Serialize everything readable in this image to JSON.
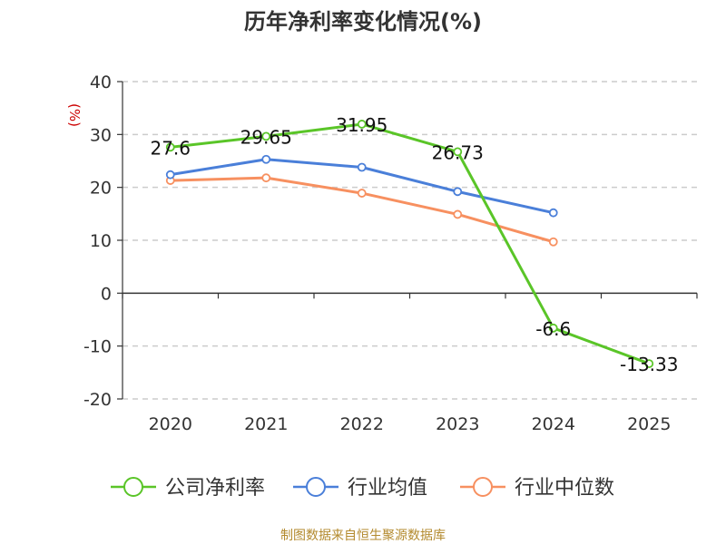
{
  "chart_data": {
    "type": "line",
    "title": "历年净利率变化情况(%)",
    "ylabel": "(%)",
    "categories": [
      "2020",
      "2021",
      "2022",
      "2023",
      "2024",
      "2025"
    ],
    "ylim": [
      -20,
      40
    ],
    "yticks": [
      40,
      30,
      20,
      10,
      0,
      -10,
      -20
    ],
    "grid": true,
    "legend_position": "bottom",
    "series": [
      {
        "name": "公司净利率",
        "color": "#5ac528",
        "values": [
          27.6,
          29.65,
          31.95,
          26.73,
          -6.6,
          -13.33
        ],
        "labels": [
          "27.6",
          "29.65",
          "31.95",
          "26.73",
          "-6.6",
          "-13.33"
        ],
        "show_labels": true
      },
      {
        "name": "行业均值",
        "color": "#4a7fd9",
        "values": [
          22.4,
          25.3,
          23.8,
          19.2,
          15.2,
          null
        ],
        "show_labels": false
      },
      {
        "name": "行业中位数",
        "color": "#f79060",
        "values": [
          21.3,
          21.8,
          18.9,
          14.9,
          9.7,
          null
        ],
        "show_labels": false
      }
    ]
  },
  "source_note": "制图数据来自恒生聚源数据库"
}
